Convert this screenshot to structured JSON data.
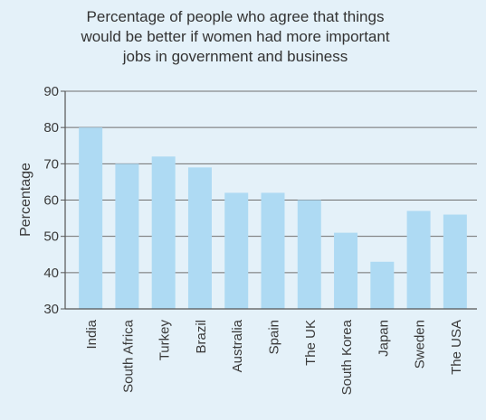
{
  "chart_data": {
    "type": "bar",
    "title_lines": [
      "Percentage of people who agree that things",
      "would be better if women had more important",
      "jobs in government and business"
    ],
    "xlabel": "",
    "ylabel": "Percentage",
    "categories": [
      "India",
      "South Africa",
      "Turkey",
      "Brazil",
      "Australia",
      "Spain",
      "The UK",
      "South Korea",
      "Japan",
      "Sweden",
      "The USA"
    ],
    "values": [
      80,
      70,
      72,
      69,
      62,
      62,
      60,
      51,
      43,
      57,
      56
    ],
    "ylim": [
      30,
      90
    ],
    "yticks": [
      30,
      40,
      50,
      60,
      70,
      80,
      90
    ],
    "grid": true,
    "colors": {
      "bar": "#aedaf3",
      "grid": "#6f6f6f",
      "axis": "#555555",
      "background": "#e4f1f9"
    }
  }
}
